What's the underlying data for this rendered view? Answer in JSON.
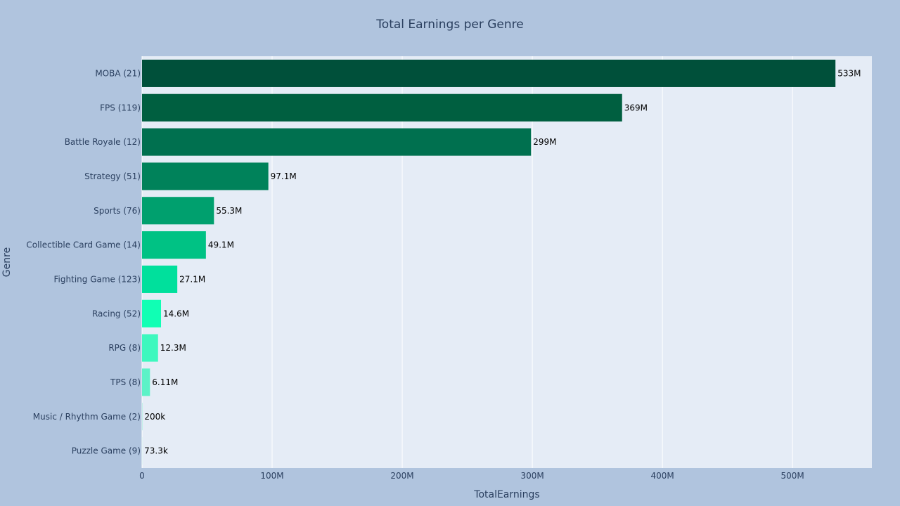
{
  "chart_data": {
    "type": "bar",
    "orientation": "horizontal",
    "title": "Total Earnings per Genre",
    "xlabel": "TotalEarnings",
    "ylabel": "Genre",
    "xlim": [
      0,
      561000000
    ],
    "xticks": [
      0,
      100000000,
      200000000,
      300000000,
      400000000,
      500000000
    ],
    "xtick_labels": [
      "0",
      "100M",
      "200M",
      "300M",
      "400M",
      "500M"
    ],
    "grid": true,
    "legend": "none",
    "categories": [
      "MOBA (21)",
      "FPS (119)",
      "Battle Royale (12)",
      "Strategy (51)",
      "Sports (76)",
      "Collectible Card Game (14)",
      "Fighting Game (123)",
      "Racing (52)",
      "RPG (8)",
      "TPS (8)",
      "Music / Rhythm Game (2)",
      "Puzzle Game (9)"
    ],
    "values": [
      533000000,
      369000000,
      299000000,
      97100000,
      55300000,
      49100000,
      27100000,
      14600000,
      12300000,
      6110000,
      200000,
      73300
    ],
    "data_labels": [
      "533M",
      "369M",
      "299M",
      "97.1M",
      "55.3M",
      "49.1M",
      "27.1M",
      "14.6M",
      "12.3M",
      "6.11M",
      "200k",
      "73.3k"
    ],
    "bar_colors": [
      "#00503a",
      "#005f40",
      "#00704f",
      "#00825a",
      "#00a06e",
      "#00c284",
      "#00e09c",
      "#10ffb4",
      "#3df8be",
      "#5cf2c7",
      "#7cf0cf",
      "#8ef0d6"
    ],
    "colors": {
      "paper_bg": "#b0c4de",
      "plot_bg": "#e5ecf6",
      "grid": "#ffffff",
      "text": "#2a3f5f",
      "label_text": "#000000"
    }
  }
}
